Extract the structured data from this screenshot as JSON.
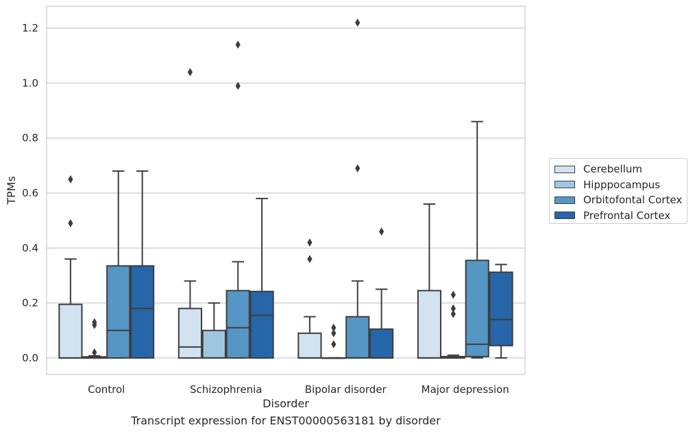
{
  "caption": "Transcript expression for ENST00000563181 by disorder",
  "chart_data": {
    "type": "boxplot",
    "xlabel": "Disorder",
    "ylabel": "TPMs",
    "ylim": [
      -0.06,
      1.28
    ],
    "yticks": [
      0.0,
      0.2,
      0.4,
      0.6,
      0.8,
      1.0,
      1.2
    ],
    "ytick_labels": [
      "0.0",
      "0.2",
      "0.4",
      "0.6",
      "0.8",
      "1.0",
      "1.2"
    ],
    "grid": true,
    "legend_position": "right",
    "categories": [
      "Control",
      "Schizophrenia",
      "Bipolar disorder",
      "Major depression"
    ],
    "series": [
      {
        "name": "Cerebellum",
        "color": "#d2e2f0",
        "boxes": [
          {
            "whislo": 0.0,
            "q1": 0.0,
            "med": 0.0,
            "q3": 0.195,
            "whishi": 0.36,
            "fliers": [
              0.49,
              0.65
            ]
          },
          {
            "whislo": 0.0,
            "q1": 0.0,
            "med": 0.04,
            "q3": 0.18,
            "whishi": 0.28,
            "fliers": [
              1.04
            ]
          },
          {
            "whislo": 0.0,
            "q1": 0.0,
            "med": 0.0,
            "q3": 0.09,
            "whishi": 0.15,
            "fliers": [
              0.36,
              0.42
            ]
          },
          {
            "whislo": 0.0,
            "q1": 0.0,
            "med": 0.0,
            "q3": 0.245,
            "whishi": 0.56,
            "fliers": []
          }
        ]
      },
      {
        "name": "Hipppocampus",
        "color": "#9fc6df",
        "boxes": [
          {
            "whislo": 0.0,
            "q1": 0.0,
            "med": 0.0,
            "q3": 0.004,
            "whishi": 0.008,
            "fliers": [
              0.02,
              0.12,
              0.13
            ]
          },
          {
            "whislo": 0.0,
            "q1": 0.0,
            "med": 0.0,
            "q3": 0.1,
            "whishi": 0.2,
            "fliers": []
          },
          {
            "whislo": 0.0,
            "q1": 0.0,
            "med": 0.0,
            "q3": 0.0,
            "whishi": 0.0,
            "fliers": [
              0.05,
              0.09,
              0.11
            ]
          },
          {
            "whislo": 0.0,
            "q1": 0.0,
            "med": 0.0,
            "q3": 0.005,
            "whishi": 0.01,
            "fliers": [
              0.16,
              0.18,
              0.23
            ]
          }
        ]
      },
      {
        "name": "Orbitofontal Cortex",
        "color": "#5596c5",
        "boxes": [
          {
            "whislo": 0.0,
            "q1": 0.0,
            "med": 0.1,
            "q3": 0.335,
            "whishi": 0.68,
            "fliers": []
          },
          {
            "whislo": 0.0,
            "q1": 0.0,
            "med": 0.11,
            "q3": 0.245,
            "whishi": 0.35,
            "fliers": [
              0.99,
              1.14
            ]
          },
          {
            "whislo": 0.0,
            "q1": 0.0,
            "med": 0.0,
            "q3": 0.15,
            "whishi": 0.28,
            "fliers": [
              0.69,
              1.22
            ]
          },
          {
            "whislo": 0.0,
            "q1": 0.005,
            "med": 0.05,
            "q3": 0.355,
            "whishi": 0.86,
            "fliers": []
          }
        ]
      },
      {
        "name": "Prefrontal Cortex",
        "color": "#2766a8",
        "boxes": [
          {
            "whislo": 0.0,
            "q1": 0.0,
            "med": 0.18,
            "q3": 0.335,
            "whishi": 0.68,
            "fliers": []
          },
          {
            "whislo": 0.0,
            "q1": 0.0,
            "med": 0.155,
            "q3": 0.242,
            "whishi": 0.58,
            "fliers": []
          },
          {
            "whislo": 0.0,
            "q1": 0.0,
            "med": 0.0,
            "q3": 0.105,
            "whishi": 0.25,
            "fliers": [
              0.46
            ]
          },
          {
            "whislo": 0.0,
            "q1": 0.045,
            "med": 0.14,
            "q3": 0.312,
            "whishi": 0.34,
            "fliers": []
          }
        ]
      }
    ]
  }
}
